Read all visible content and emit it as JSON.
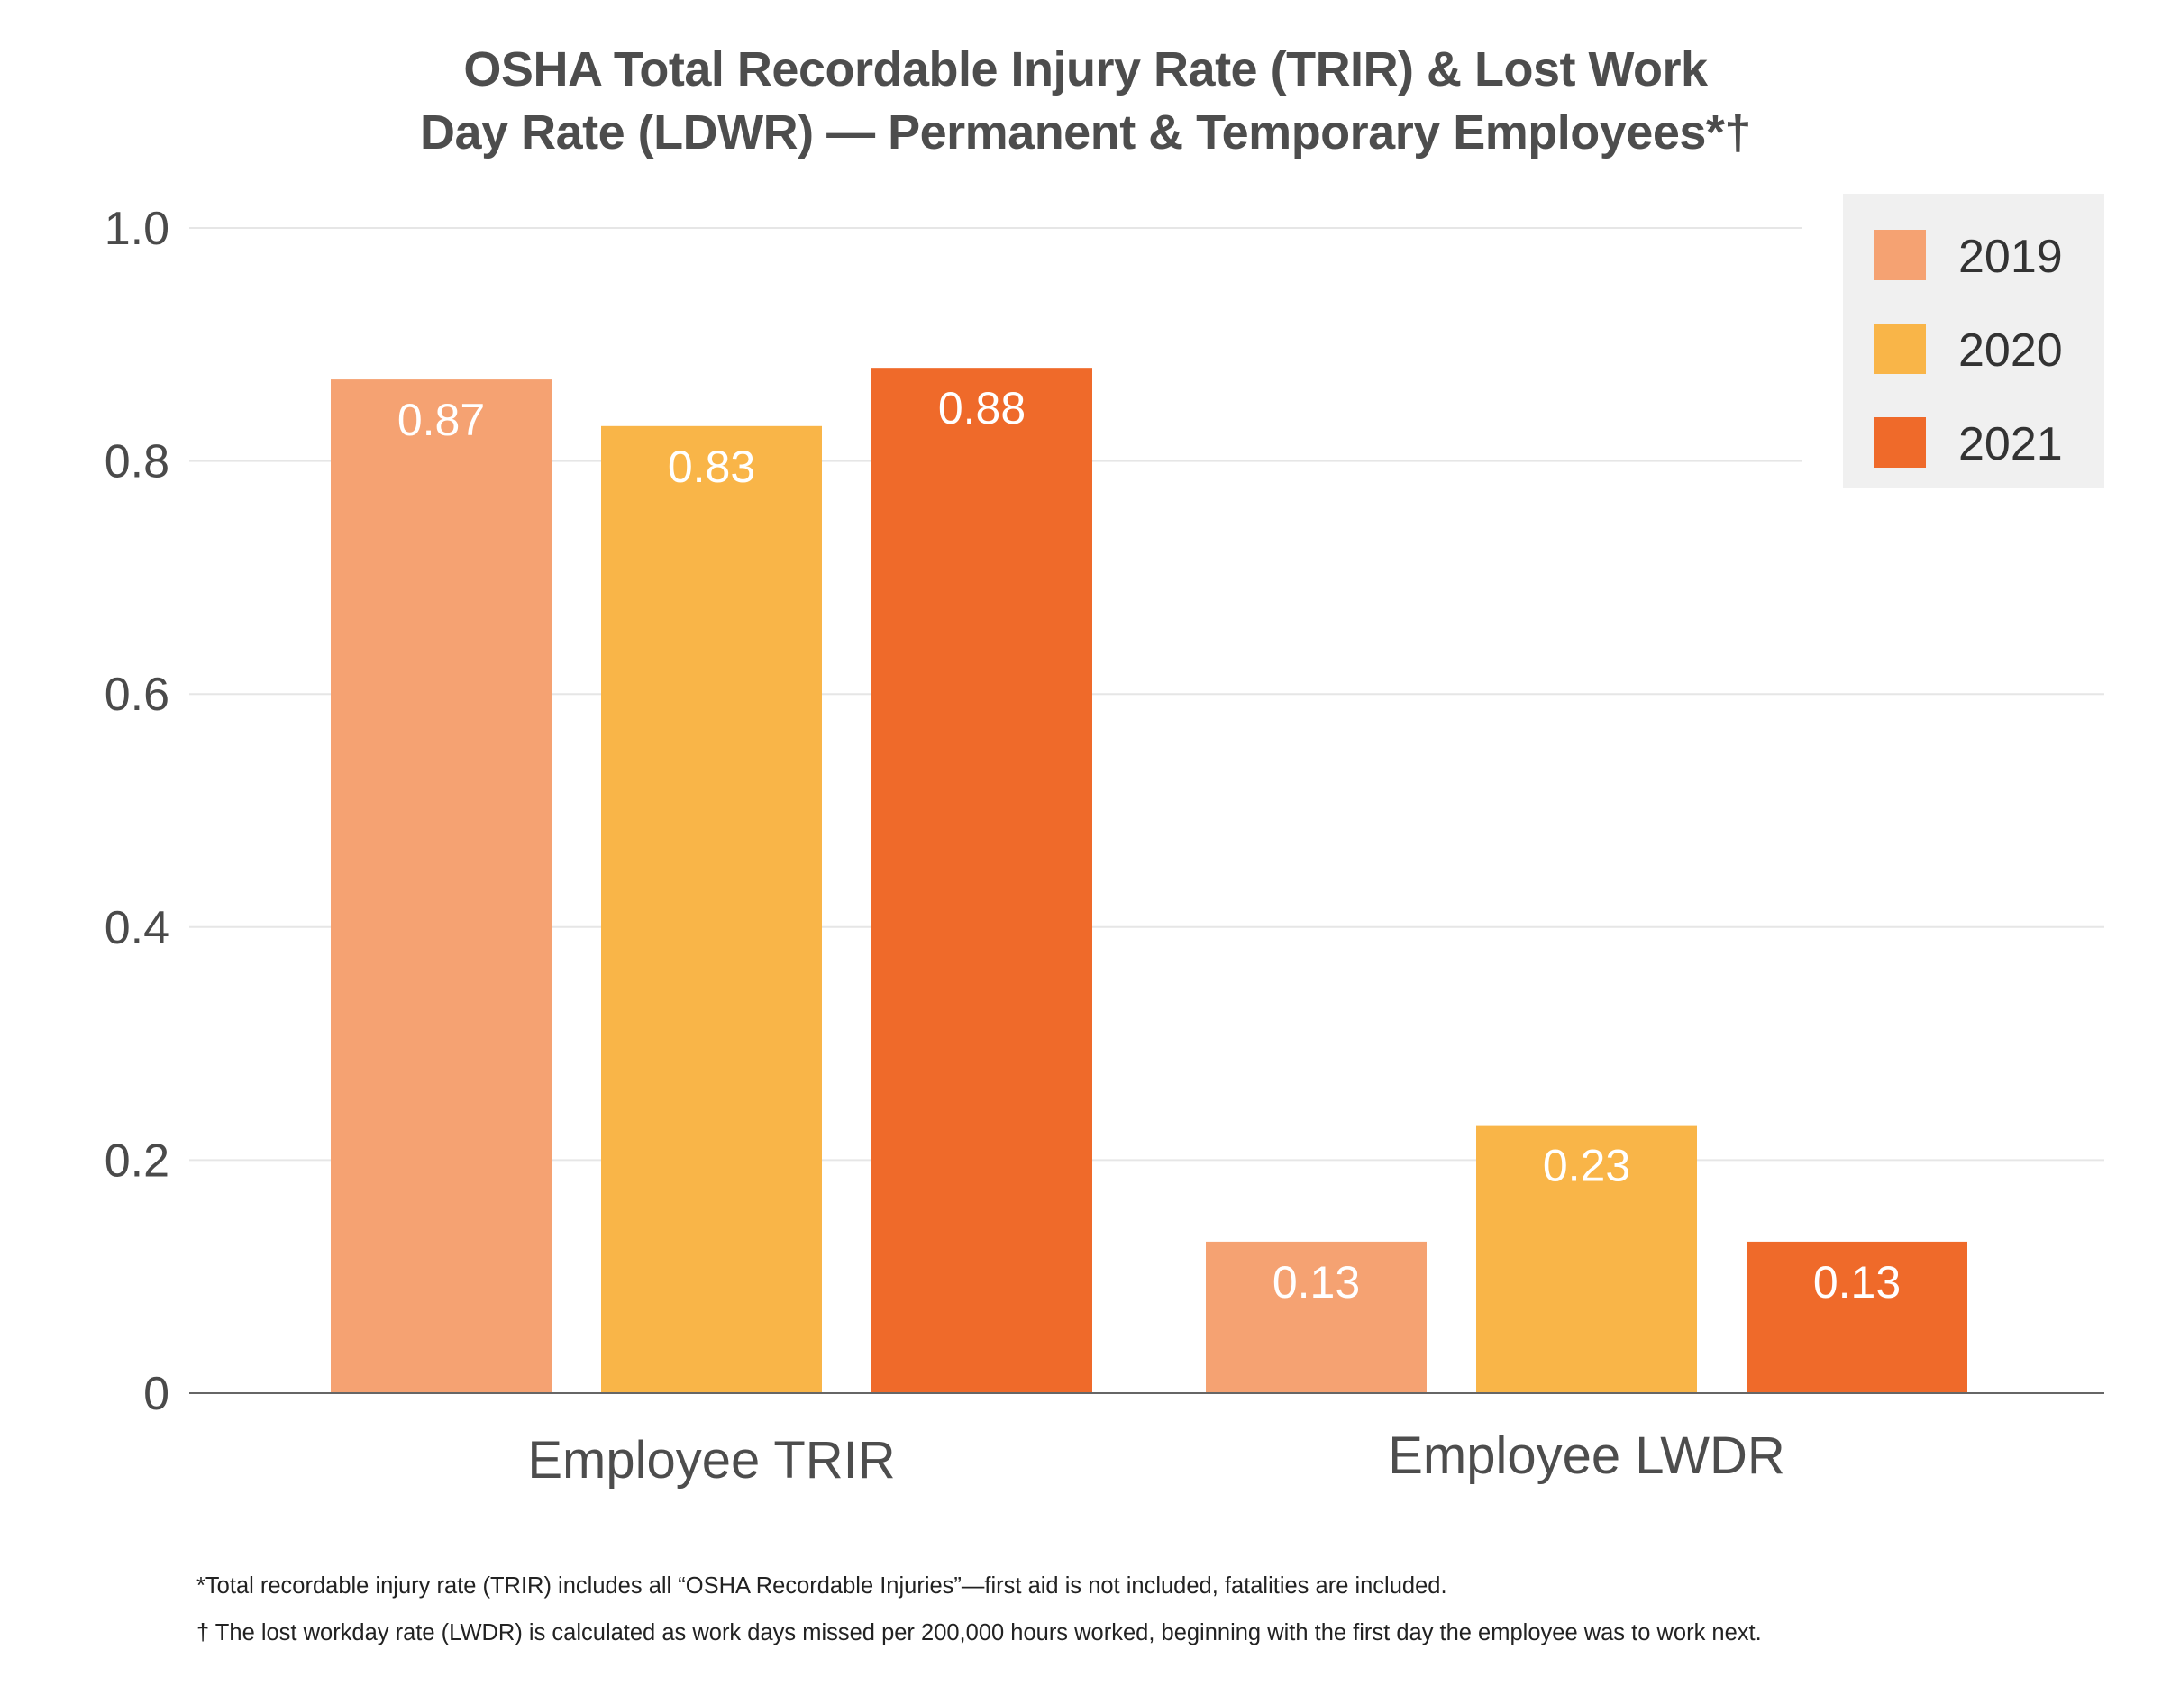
{
  "chart_data": {
    "type": "bar",
    "title_lines": [
      "OSHA Total Recordable Injury Rate (TRIR) & Lost Work",
      "Day Rate (LDWR) — Permanent & Temporary Employees*†"
    ],
    "categories": [
      "Employee TRIR",
      "Employee LWDR"
    ],
    "series": [
      {
        "name": "2019",
        "values": [
          0.87,
          0.13
        ],
        "labels": [
          "0.87",
          "0.13"
        ],
        "color": "#f5a272"
      },
      {
        "name": "2020",
        "values": [
          0.83,
          0.23
        ],
        "labels": [
          "0.83",
          "0.23"
        ],
        "color": "#f9b548"
      },
      {
        "name": "2021",
        "values": [
          0.88,
          0.13
        ],
        "labels": [
          "0.88",
          "0.13"
        ],
        "color": "#ef6a2a"
      }
    ],
    "ylim": [
      0,
      1.0
    ],
    "yticks": [
      0,
      0.2,
      0.4,
      0.6,
      0.8,
      1.0
    ],
    "ytick_labels": [
      "0",
      "0.2",
      "0.4",
      "0.6",
      "0.8",
      "1.0"
    ],
    "grid": true,
    "legend_position": "top-right",
    "xlabel": "",
    "ylabel": ""
  },
  "footnotes": [
    "*Total recordable injury rate (TRIR) includes all “OSHA Recordable Injuries”—first aid is not included, fatalities are included.",
    "† The lost workday rate (LWDR) is calculated as work days missed per 200,000 hours worked, beginning with the first day the employee was to work next."
  ],
  "colors": {
    "gridline": "#e6e6e6",
    "axis": "#666666",
    "legend_bg": "#f0f0f0"
  }
}
